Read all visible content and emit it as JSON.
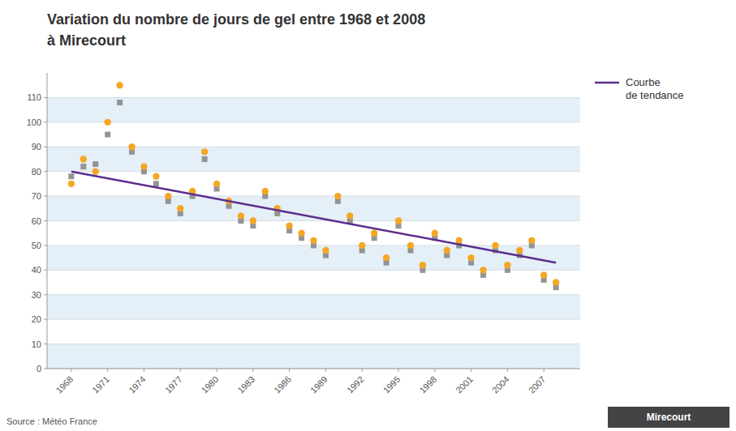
{
  "chart_data": {
    "type": "scatter",
    "title": "Variation du nombre de jours de gel entre 1968 et 2008",
    "subtitle": "à Mirecourt",
    "x": [
      1968,
      1969,
      1970,
      1971,
      1972,
      1973,
      1974,
      1975,
      1976,
      1977,
      1978,
      1979,
      1980,
      1981,
      1982,
      1983,
      1984,
      1985,
      1986,
      1987,
      1988,
      1989,
      1990,
      1991,
      1992,
      1993,
      1994,
      1995,
      1996,
      1997,
      1998,
      1999,
      2000,
      2001,
      2002,
      2003,
      2004,
      2005,
      2006,
      2007,
      2008
    ],
    "series": [
      {
        "type": "scatter",
        "marker": "square",
        "color": "#888888",
        "values": [
          78,
          82,
          83,
          95,
          108,
          88,
          80,
          75,
          68,
          63,
          70,
          85,
          73,
          66,
          60,
          58,
          70,
          63,
          56,
          53,
          50,
          46,
          68,
          60,
          48,
          53,
          43,
          58,
          48,
          40,
          53,
          46,
          50,
          43,
          38,
          48,
          40,
          46,
          50,
          36,
          33
        ]
      },
      {
        "type": "scatter",
        "marker": "circle",
        "color": "#f5a623",
        "values": [
          75,
          85,
          80,
          100,
          115,
          90,
          82,
          78,
          70,
          65,
          72,
          88,
          75,
          68,
          62,
          60,
          72,
          65,
          58,
          55,
          52,
          48,
          70,
          62,
          50,
          55,
          45,
          60,
          50,
          42,
          55,
          48,
          52,
          45,
          40,
          50,
          42,
          48,
          52,
          38,
          35
        ]
      },
      {
        "type": "line",
        "name": "Courbe\nde tendance",
        "color": "#5b2d8e",
        "line_style": "solid",
        "x": [
          1968,
          2008
        ],
        "values": [
          80,
          43
        ]
      }
    ],
    "xlim": [
      1966,
      2010
    ],
    "xticks": [
      1968,
      1971,
      1974,
      1977,
      1980,
      1983,
      1986,
      1989,
      1992,
      1995,
      1998,
      2001,
      2004,
      2007
    ],
    "ylim": [
      0,
      120
    ],
    "yticks": [
      0,
      10,
      20,
      30,
      40,
      50,
      60,
      70,
      80,
      90,
      100,
      110
    ],
    "grid": true,
    "legend": "upper right",
    "annotations": [
      "Source : Météo France",
      "Mirecourt"
    ]
  }
}
